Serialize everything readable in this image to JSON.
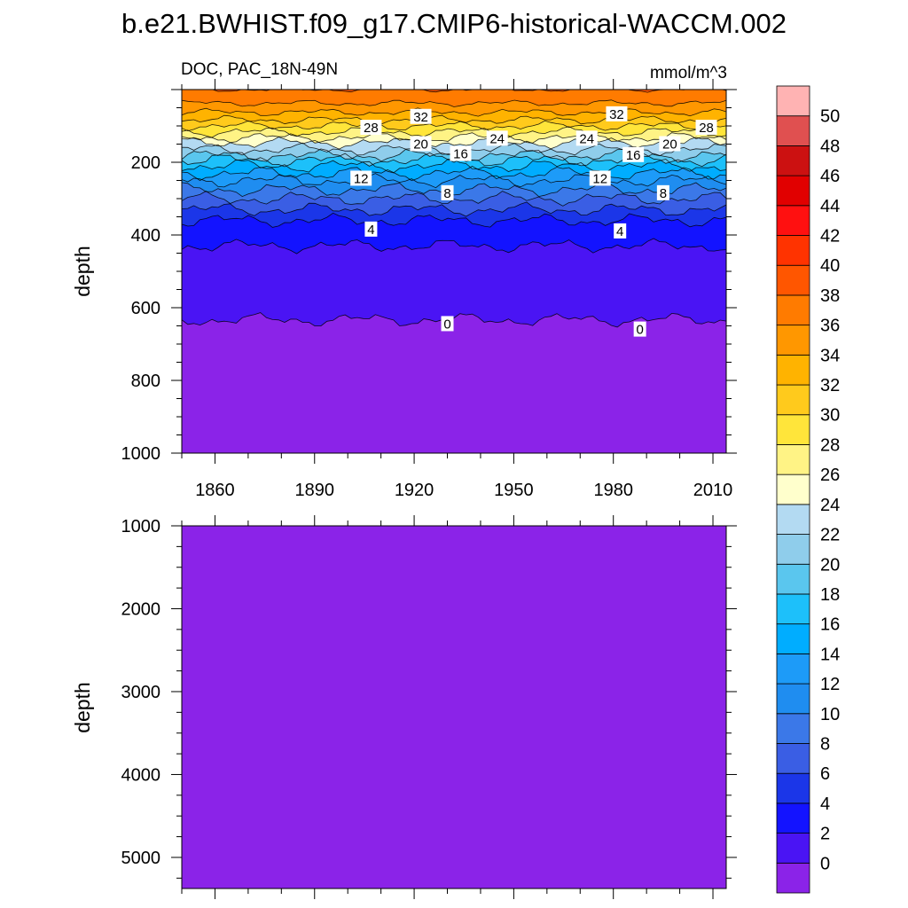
{
  "title": "b.e21.BWHIST.f09_g17.CMIP6-historical-WACCM.002",
  "colors": {
    "frame": "#000000",
    "label_box": "#ffffff",
    "levels": [
      "#8b23e8",
      "#4a14f4",
      "#1313ff",
      "#1b36e8",
      "#3a5ee4",
      "#3b78e8",
      "#1f8df0",
      "#1d9bf8",
      "#00adff",
      "#1dc0fa",
      "#5ac6ee",
      "#8fcdeb",
      "#b3daf2",
      "#ffffcc",
      "#fff385",
      "#ffe53a",
      "#ffca1c",
      "#ffb300",
      "#ff9700",
      "#ff7b00",
      "#ff5600",
      "#ff3300",
      "#ff1010",
      "#e10000",
      "#cc1111",
      "#e05050",
      "#ffb3b3"
    ]
  },
  "chart_data": [
    {
      "type": "contour",
      "left_label": "DOC, PAC_18N-49N",
      "right_label": "mmol/m^3",
      "ylabel": "depth",
      "xlim": [
        1850,
        2014
      ],
      "ylim": [
        1000,
        0
      ],
      "xticks": [
        "1860",
        "1890",
        "1920",
        "1950",
        "1980",
        "2010"
      ],
      "yticks": [
        "200",
        "400",
        "600",
        "800",
        "1000"
      ],
      "level_step": 2,
      "profile": [
        [
          0,
          38
        ],
        [
          25,
          37
        ],
        [
          50,
          35
        ],
        [
          75,
          33
        ],
        [
          100,
          30
        ],
        [
          125,
          27
        ],
        [
          150,
          23.5
        ],
        [
          175,
          21
        ],
        [
          200,
          17
        ],
        [
          250,
          12
        ],
        [
          300,
          8
        ],
        [
          330,
          6
        ],
        [
          350,
          4.5
        ],
        [
          380,
          3
        ],
        [
          430,
          2
        ],
        [
          500,
          1.4
        ],
        [
          600,
          0.6
        ],
        [
          650,
          -0.3
        ],
        [
          700,
          -0.8
        ],
        [
          1000,
          -1.5
        ]
      ],
      "contour_labels": [
        {
          "text": "32",
          "x": 1922,
          "y": 75
        },
        {
          "text": "32",
          "x": 1981,
          "y": 68
        },
        {
          "text": "28",
          "x": 1907,
          "y": 105
        },
        {
          "text": "28",
          "x": 2008,
          "y": 105
        },
        {
          "text": "24",
          "x": 1945,
          "y": 135
        },
        {
          "text": "24",
          "x": 1972,
          "y": 135
        },
        {
          "text": "20",
          "x": 1922,
          "y": 150
        },
        {
          "text": "20",
          "x": 1997,
          "y": 150
        },
        {
          "text": "16",
          "x": 1934,
          "y": 177
        },
        {
          "text": "16",
          "x": 1986,
          "y": 180
        },
        {
          "text": "12",
          "x": 1904,
          "y": 245
        },
        {
          "text": "12",
          "x": 1976,
          "y": 245
        },
        {
          "text": "8",
          "x": 1930,
          "y": 285
        },
        {
          "text": "8",
          "x": 1995,
          "y": 285
        },
        {
          "text": "4",
          "x": 1907,
          "y": 385
        },
        {
          "text": "4",
          "x": 1982,
          "y": 390
        },
        {
          "text": "0",
          "x": 1930,
          "y": 645
        },
        {
          "text": "0",
          "x": 1988,
          "y": 660
        }
      ]
    },
    {
      "type": "contour",
      "ylabel": "depth",
      "xlim": [
        1850,
        2014
      ],
      "ylim": [
        5375,
        1000
      ],
      "yticks": [
        "1000",
        "2000",
        "3000",
        "4000",
        "5000"
      ],
      "fill_level": 0
    },
    {
      "type": "colorbar",
      "labels": [
        "0",
        "2",
        "4",
        "6",
        "8",
        "10",
        "12",
        "14",
        "16",
        "18",
        "20",
        "22",
        "24",
        "26",
        "28",
        "30",
        "32",
        "34",
        "36",
        "38",
        "40",
        "42",
        "44",
        "46",
        "48",
        "50"
      ]
    }
  ]
}
